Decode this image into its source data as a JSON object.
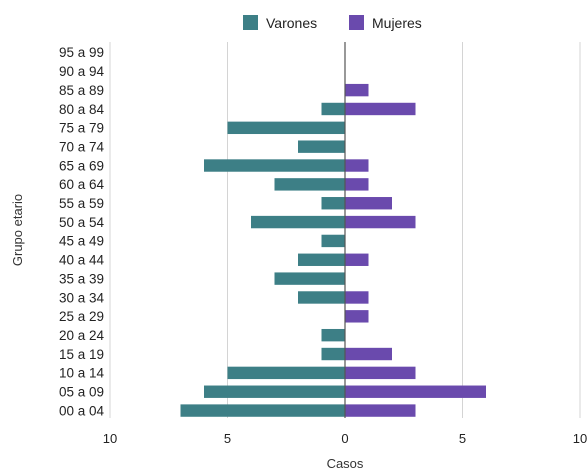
{
  "chart_data": {
    "type": "bar",
    "orientation": "horizontal",
    "style": "population-pyramid",
    "xlabel": "Casos",
    "ylabel": "Grupo etario",
    "xlim": [
      -10,
      10
    ],
    "xticks": [
      -10,
      -5,
      0,
      5,
      10
    ],
    "xtick_labels": [
      "10",
      "5",
      "0",
      "5",
      "10"
    ],
    "grid": "vertical",
    "legend_position": "top",
    "categories": [
      "95 a 99",
      "90 a 94",
      "85 a 89",
      "80 a 84",
      "75 a 79",
      "70 a 74",
      "65 a 69",
      "60 a 64",
      "55 a 59",
      "50 a 54",
      "45 a 49",
      "40 a 44",
      "35 a 39",
      "30 a 34",
      "25 a 29",
      "20 a 24",
      "15 a 19",
      "10 a 14",
      "05 a 09",
      "00 a 04"
    ],
    "series": [
      {
        "name": "Varones",
        "color": "#3d7f86",
        "side": "left",
        "values": [
          0,
          0,
          0,
          1,
          5,
          2,
          6,
          3,
          1,
          4,
          1,
          2,
          3,
          2,
          0,
          1,
          1,
          5,
          6,
          7
        ]
      },
      {
        "name": "Mujeres",
        "color": "#6a4aad",
        "side": "right",
        "values": [
          0,
          0,
          1,
          3,
          0,
          0,
          1,
          1,
          2,
          3,
          0,
          1,
          0,
          1,
          1,
          0,
          2,
          3,
          6,
          3
        ]
      }
    ]
  }
}
